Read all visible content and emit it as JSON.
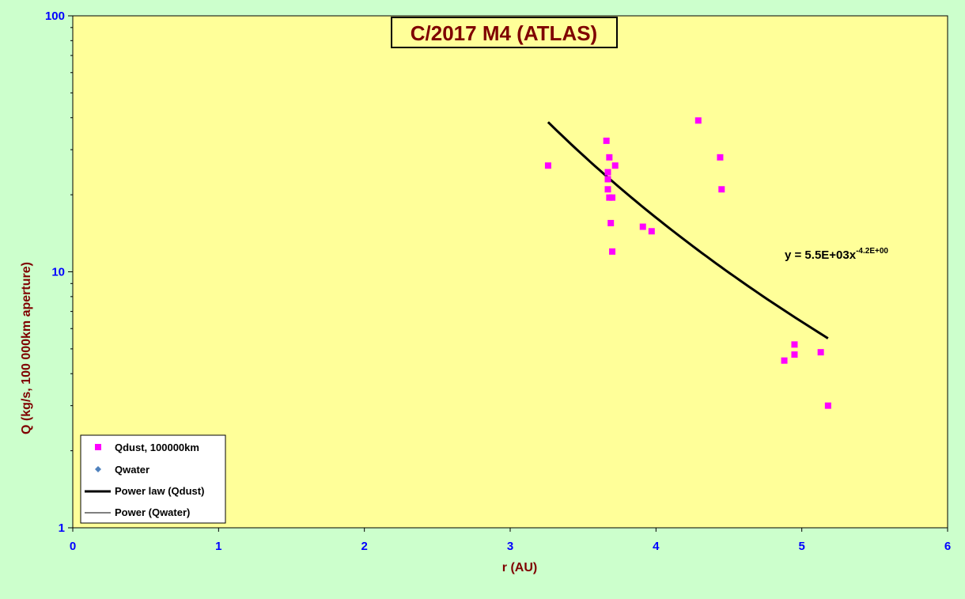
{
  "chart_data": {
    "type": "scatter",
    "title": "C/2017 M4 (ATLAS)",
    "xlabel": "r (AU)",
    "ylabel": "Q (kg/s, 100 000km aperture)",
    "xlim": [
      0,
      6
    ],
    "ylim": [
      1,
      100
    ],
    "yscale": "log",
    "x_ticks": [
      "0",
      "1",
      "2",
      "3",
      "4",
      "5",
      "6"
    ],
    "y_ticks": [
      "1",
      "10",
      "100"
    ],
    "grid": false,
    "legend_position": "bottom-left",
    "colors": {
      "plot_bg": "#ffff99",
      "outer_bg": "#ccffcc",
      "dust": "#ff00ff",
      "water": "#4f81bd",
      "fit": "#000000",
      "tick_text": "#0000ff",
      "axis_title": "#7f0000"
    },
    "series": [
      {
        "name": "Qdust, 100000km",
        "marker": "square",
        "points": [
          [
            3.26,
            26.0
          ],
          [
            3.66,
            32.5
          ],
          [
            3.68,
            28.0
          ],
          [
            3.72,
            26.0
          ],
          [
            3.67,
            24.5
          ],
          [
            3.67,
            23.0
          ],
          [
            3.67,
            21.0
          ],
          [
            3.68,
            19.5
          ],
          [
            3.7,
            19.5
          ],
          [
            3.69,
            15.5
          ],
          [
            3.7,
            12.0
          ],
          [
            3.91,
            15.0
          ],
          [
            3.97,
            14.4
          ],
          [
            4.29,
            39.0
          ],
          [
            4.44,
            28.0
          ],
          [
            4.45,
            21.0
          ],
          [
            4.88,
            4.5
          ],
          [
            4.95,
            4.75
          ],
          [
            4.95,
            5.2
          ],
          [
            5.13,
            4.85
          ],
          [
            5.18,
            3.0
          ]
        ]
      },
      {
        "name": "Qwater",
        "marker": "diamond",
        "points": []
      }
    ],
    "fits": [
      {
        "name": "Power law (Qdust)",
        "type": "power",
        "a": 5500,
        "b": -4.2,
        "x_range": [
          3.26,
          5.18
        ],
        "stroke": "thick"
      },
      {
        "name": "Power (Qwater)",
        "type": "power",
        "stroke": "thin"
      }
    ],
    "annotation": {
      "text_main": "y = 5.5E+03x",
      "text_sup": "-4.2E+00"
    }
  }
}
